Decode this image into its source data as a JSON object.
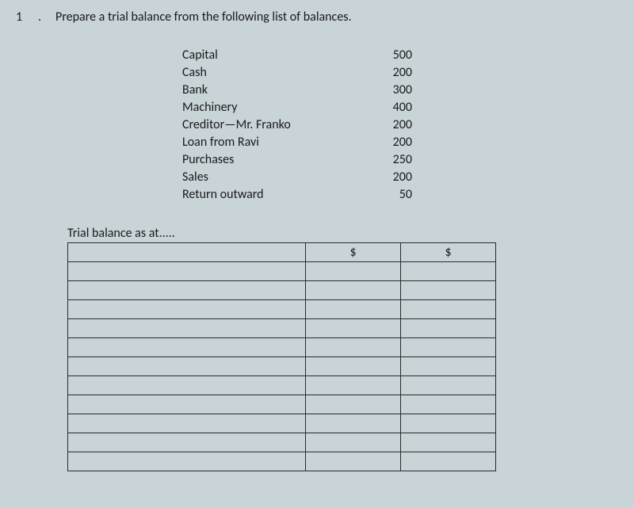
{
  "question": {
    "number": "1",
    "separator": ".",
    "text": "Prepare a trial balance from the following list of balances."
  },
  "balances": [
    {
      "label": "Capital",
      "value": "500"
    },
    {
      "label": "Cash",
      "value": "200"
    },
    {
      "label": "Bank",
      "value": "300"
    },
    {
      "label": "Machinery",
      "value": "400"
    },
    {
      "label": "Creditor—Mr. Franko",
      "value": "200"
    },
    {
      "label": "Loan from Ravi",
      "value": "200"
    },
    {
      "label": "Purchases",
      "value": "250"
    },
    {
      "label": "Sales",
      "value": "200"
    },
    {
      "label": "Return outward",
      "value": "50"
    }
  ],
  "trial_table": {
    "title": "Trial balance as at.....",
    "header_col1": "",
    "header_col2": "$",
    "header_col3": "$",
    "row_count": 12,
    "columns": {
      "desc_width": 300,
      "amt_width": 120
    },
    "border_color": "#2a2a2a",
    "background_color": "#c8d4d8",
    "text_color": "#1a1a1a",
    "font_size": 16
  }
}
